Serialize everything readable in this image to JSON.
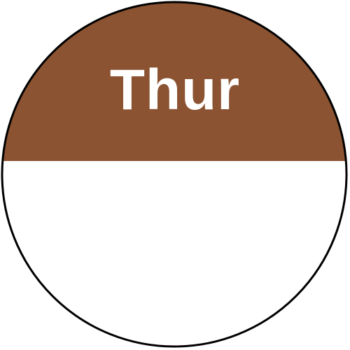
{
  "label": {
    "day": "Thur",
    "band_color": "#8B5331",
    "text_color": "#FFFFFF",
    "body_color": "#FFFFFF",
    "outline_color": "#000000"
  }
}
